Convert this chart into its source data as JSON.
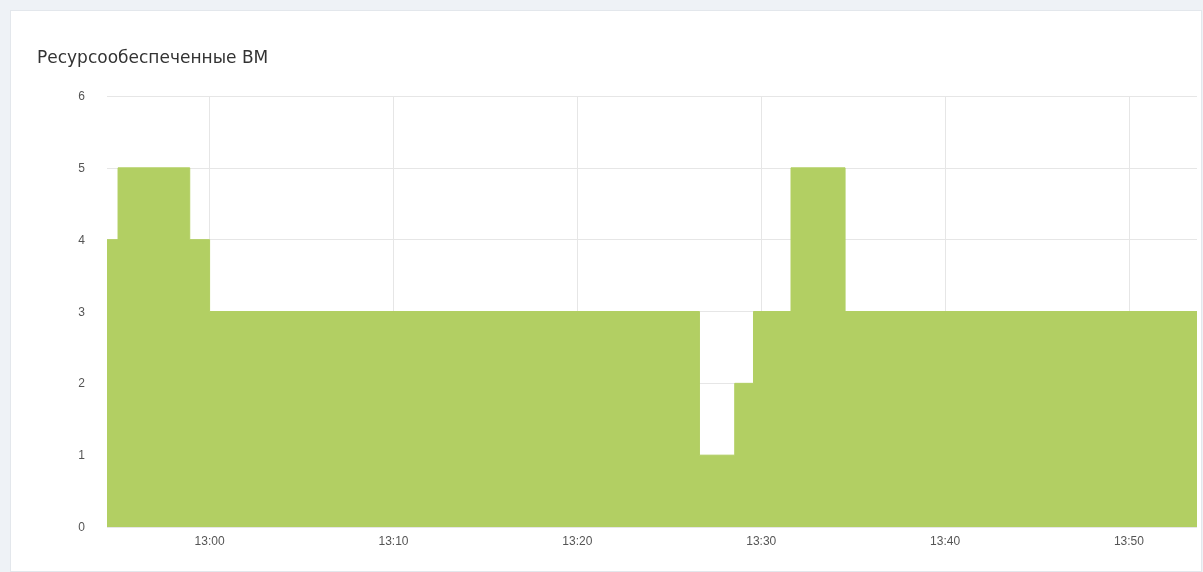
{
  "chart_data": {
    "type": "area",
    "title": "Ресурсообеспеченные ВМ",
    "x": [
      12.907,
      12.917,
      12.917,
      12.982,
      12.982,
      13.0,
      13.0,
      13.444,
      13.444,
      13.476,
      13.476,
      13.493,
      13.493,
      13.527,
      13.527,
      13.576,
      13.576,
      13.895
    ],
    "series": [
      {
        "color": "#b2cf63",
        "values": [
          4,
          4,
          5,
          5,
          4,
          4,
          3,
          3,
          1,
          1,
          2,
          2,
          3,
          3,
          5,
          5,
          3,
          3
        ]
      }
    ],
    "xlim": [
      12.907,
      13.895
    ],
    "xticks": [
      {
        "value": 13,
        "label": "13:00"
      },
      {
        "value": 13.1667,
        "label": "13:10"
      },
      {
        "value": 13.3333,
        "label": "13:20"
      },
      {
        "value": 13.5,
        "label": "13:30"
      },
      {
        "value": 13.6667,
        "label": "13:40"
      },
      {
        "value": 13.8333,
        "label": "13:50"
      }
    ],
    "ylim": [
      0,
      6
    ],
    "yticks": [
      0,
      1,
      2,
      3,
      4,
      5,
      6
    ],
    "grid": true
  }
}
